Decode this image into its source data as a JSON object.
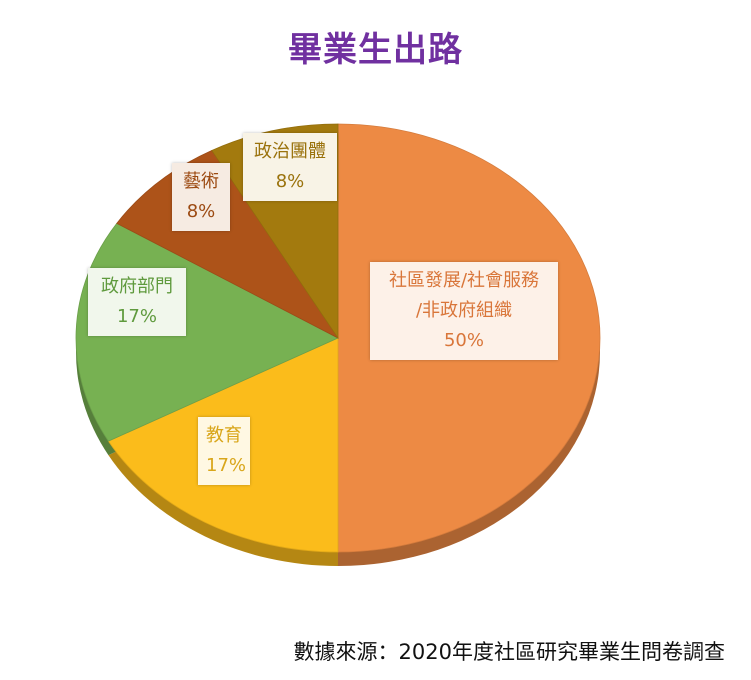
{
  "chart_data": {
    "type": "pie",
    "title": "畢業生出路",
    "slices": [
      {
        "label": "社區發展/社會服務/非政府組織",
        "label_lines": [
          "社區發展/社會服務",
          "/非政府組織"
        ],
        "value": 50,
        "value_text": "50%",
        "color": "#ed8a44"
      },
      {
        "label": "教育",
        "label_lines": [
          "教育"
        ],
        "value": 17,
        "value_text": "17%",
        "color": "#fbbc1b"
      },
      {
        "label": "政府部門",
        "label_lines": [
          "政府部門"
        ],
        "value": 17,
        "value_text": "17%",
        "color": "#77b152"
      },
      {
        "label": "藝術",
        "label_lines": [
          "藝術"
        ],
        "value": 8,
        "value_text": "8%",
        "color": "#ad5319"
      },
      {
        "label": "政治團體",
        "label_lines": [
          "政治團體"
        ],
        "value": 8,
        "value_text": "8%",
        "color": "#a37a0e"
      }
    ],
    "legend": "none",
    "source": "數據來源：2020年度社區研究畢業生問卷調查"
  }
}
